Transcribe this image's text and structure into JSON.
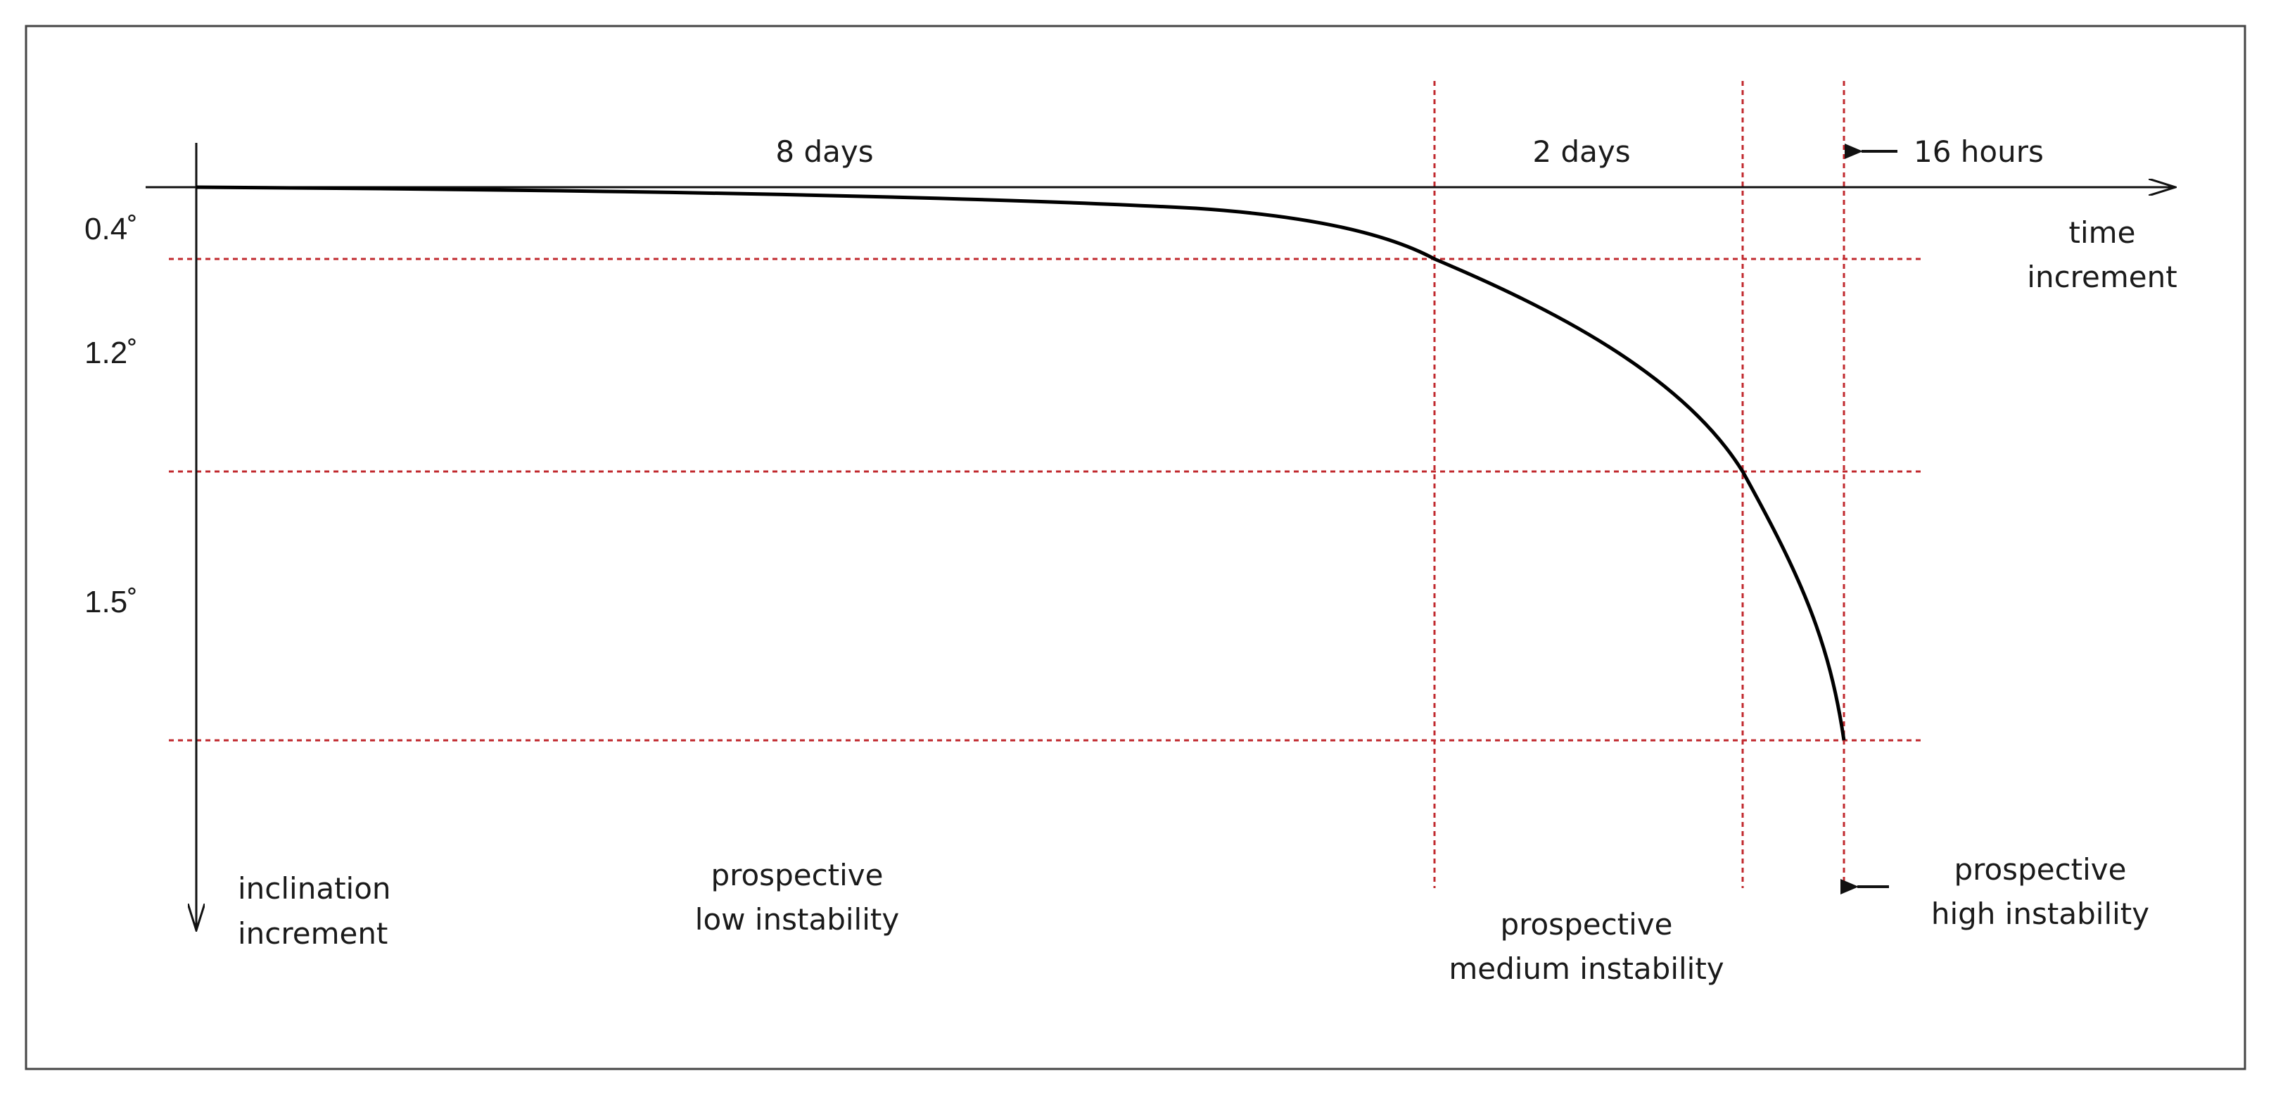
{
  "diagram": {
    "colors": {
      "frame": "#444444",
      "axis": "#111111",
      "curve": "#000000",
      "reference_lines": "#c0282d"
    },
    "intervals": {
      "first": "8 days",
      "second": "2 days",
      "third": "16 hours"
    },
    "axes": {
      "time_axis_label": [
        "time",
        "increment"
      ],
      "inclination_axis_label": [
        "inclination",
        "increment"
      ]
    },
    "thresholds": [
      "0.4˚",
      "1.2˚",
      "1.5˚"
    ],
    "zones": {
      "low": [
        "prospective",
        "low instability"
      ],
      "medium": [
        "prospective",
        "medium instability"
      ],
      "high": [
        "prospective",
        "high instability"
      ]
    }
  }
}
